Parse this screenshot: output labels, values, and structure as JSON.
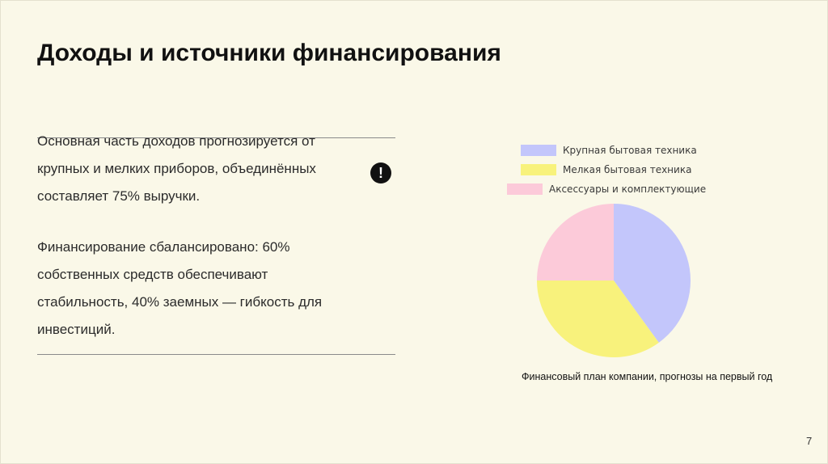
{
  "slide": {
    "title": "Доходы и источники финансирования",
    "paragraph1": "Основная часть доходов прогнозируется от крупных и мелких приборов, объединённых составляет 75% выручки.",
    "paragraph2": "Финансирование сбалансировано: 60% собственных средств обеспечивают стабильность, 40% заемных — гибкость для инвестиций.",
    "alert_icon": "exclamation-circle-icon",
    "alert_glyph": "!",
    "page_number": "7"
  },
  "chart_data": {
    "type": "pie",
    "caption": "Финансовый план компании, прогнозы на первый год",
    "legend_position": "top",
    "slices": [
      {
        "label": "Крупная бытовая техника",
        "value": 40,
        "color": "#c3c6fb"
      },
      {
        "label": "Мелкая бытовая техника",
        "value": 35,
        "color": "#f8f27c"
      },
      {
        "label": "Аксессуары и комплектующие",
        "value": 25,
        "color": "#fccad9"
      }
    ]
  }
}
